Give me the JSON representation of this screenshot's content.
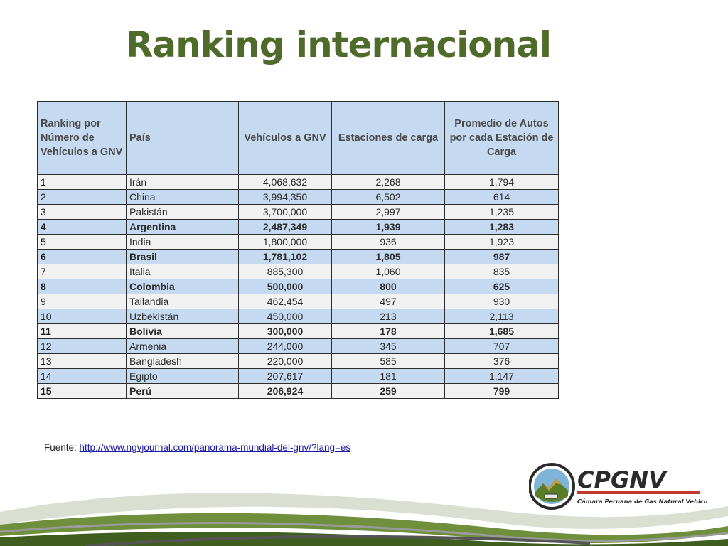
{
  "slide": {
    "title": "Ranking internacional",
    "source_label": "Fuente:",
    "source_url": "http://www.ngvjournal.com/panorama-mundial-del-gnv/?lang=es",
    "logo_text": "CPGNV",
    "logo_subtitle": "Cámara Peruana de Gas Natural Vehicular"
  },
  "table": {
    "headers": [
      "Ranking por Número de Vehículos a GNV",
      "País",
      "Vehículos a GNV",
      "Estaciones de carga",
      "Promedio de Autos por cada Estación de Carga"
    ],
    "rows": [
      {
        "rank": "1",
        "country": "Irán",
        "vehicles": "4,068,632",
        "stations": "2,268",
        "average": "1,794",
        "bold": false
      },
      {
        "rank": "2",
        "country": "China",
        "vehicles": "3,994,350",
        "stations": "6,502",
        "average": "614",
        "bold": false
      },
      {
        "rank": "3",
        "country": "Pakistán",
        "vehicles": "3,700,000",
        "stations": "2,997",
        "average": "1,235",
        "bold": false
      },
      {
        "rank": "4",
        "country": "Argentina",
        "vehicles": "2,487,349",
        "stations": "1,939",
        "average": "1,283",
        "bold": true
      },
      {
        "rank": "5",
        "country": "India",
        "vehicles": "1,800,000",
        "stations": "936",
        "average": "1,923",
        "bold": false
      },
      {
        "rank": "6",
        "country": "Brasil",
        "vehicles": "1,781,102",
        "stations": "1,805",
        "average": "987",
        "bold": true
      },
      {
        "rank": "7",
        "country": "Italia",
        "vehicles": "885,300",
        "stations": "1,060",
        "average": "835",
        "bold": false
      },
      {
        "rank": "8",
        "country": "Colombia",
        "vehicles": "500,000",
        "stations": "800",
        "average": "625",
        "bold": true
      },
      {
        "rank": "9",
        "country": "Tailandia",
        "vehicles": "462,454",
        "stations": "497",
        "average": "930",
        "bold": false
      },
      {
        "rank": "10",
        "country": "Uzbekistán",
        "vehicles": "450,000",
        "stations": "213",
        "average": "2,113",
        "bold": false
      },
      {
        "rank": "11",
        "country": "Bolivia",
        "vehicles": "300,000",
        "stations": "178",
        "average": "1,685",
        "bold": true
      },
      {
        "rank": "12",
        "country": "Armenia",
        "vehicles": "244,000",
        "stations": "345",
        "average": "707",
        "bold": false
      },
      {
        "rank": "13",
        "country": "Bangladesh",
        "vehicles": "220,000",
        "stations": "585",
        "average": "376",
        "bold": false
      },
      {
        "rank": "14",
        "country": "Egipto",
        "vehicles": "207,617",
        "stations": "181",
        "average": "1,147",
        "bold": false
      },
      {
        "rank": "15",
        "country": "Perú",
        "vehicles": "206,924",
        "stations": "259",
        "average": "799",
        "bold": true
      }
    ]
  },
  "colors": {
    "title": "#4e6b2a",
    "header_fill": "#c5d9f1",
    "row_light": "#f1f1f1",
    "row_blue": "#c5d9f1",
    "link": "#1a1aa8"
  }
}
